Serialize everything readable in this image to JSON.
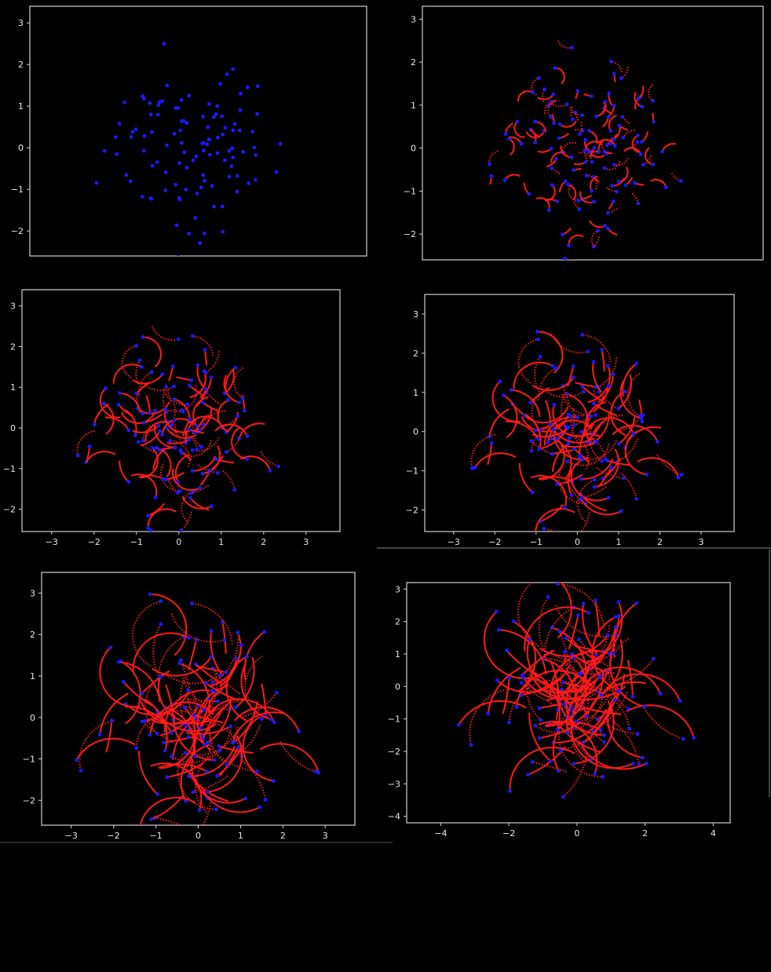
{
  "figure": {
    "background": "#000000",
    "frame_color": "#d0d0d0",
    "path_color": "#ff1a1a",
    "point_color": "#1a1aff"
  },
  "chart_data": [
    {
      "type": "scatter",
      "title": "",
      "xlabel": "",
      "ylabel": "",
      "xlim": [
        -3.7,
        4.0
      ],
      "ylim": [
        -2.6,
        3.4
      ],
      "xticks": [],
      "yticks": [
        -2,
        -1,
        0,
        1,
        2,
        3
      ],
      "series": [
        {
          "spread": 0.05,
          "points": 110
        }
      ]
    },
    {
      "type": "scatter",
      "title": "",
      "xlabel": "",
      "ylabel": "",
      "xlim": [
        -3.7,
        4.0
      ],
      "ylim": [
        -2.6,
        3.3
      ],
      "xticks": [],
      "yticks": [
        -2,
        -1,
        0,
        1,
        2,
        3
      ],
      "series": [
        {
          "spread": 0.35,
          "points": 110
        }
      ]
    },
    {
      "type": "scatter",
      "title": "",
      "xlabel": "",
      "ylabel": "",
      "xlim": [
        -3.7,
        3.8
      ],
      "ylim": [
        -2.55,
        3.4
      ],
      "xticks": [
        -3,
        -2,
        -1,
        0,
        1,
        2,
        3
      ],
      "yticks": [
        -2,
        -1,
        0,
        1,
        2,
        3
      ],
      "series": [
        {
          "spread": 0.7,
          "points": 110
        }
      ]
    },
    {
      "type": "scatter",
      "title": "",
      "xlabel": "",
      "ylabel": "",
      "xlim": [
        -3.7,
        3.8
      ],
      "ylim": [
        -2.55,
        3.5
      ],
      "xticks": [
        -3,
        -2,
        -1,
        0,
        1,
        2,
        3
      ],
      "yticks": [
        -2,
        -1,
        0,
        1,
        2,
        3
      ],
      "series": [
        {
          "spread": 1.0,
          "points": 110
        }
      ]
    },
    {
      "type": "scatter",
      "title": "",
      "xlabel": "",
      "ylabel": "",
      "xlim": [
        -3.7,
        3.7
      ],
      "ylim": [
        -2.6,
        3.5
      ],
      "xticks": [
        -3,
        -2,
        -1,
        0,
        1,
        2,
        3
      ],
      "yticks": [
        -2,
        -1,
        0,
        1,
        2,
        3
      ],
      "series": [
        {
          "spread": 1.4,
          "points": 110
        }
      ]
    },
    {
      "type": "scatter",
      "title": "",
      "xlabel": "",
      "ylabel": "",
      "xlim": [
        -5.0,
        4.5
      ],
      "ylim": [
        -4.2,
        3.2
      ],
      "xticks": [
        -4,
        -2,
        0,
        2,
        4
      ],
      "yticks": [
        -4,
        -3,
        -2,
        -1,
        0,
        1,
        2,
        3
      ],
      "series": [
        {
          "spread": 2.0,
          "points": 110
        }
      ]
    }
  ]
}
